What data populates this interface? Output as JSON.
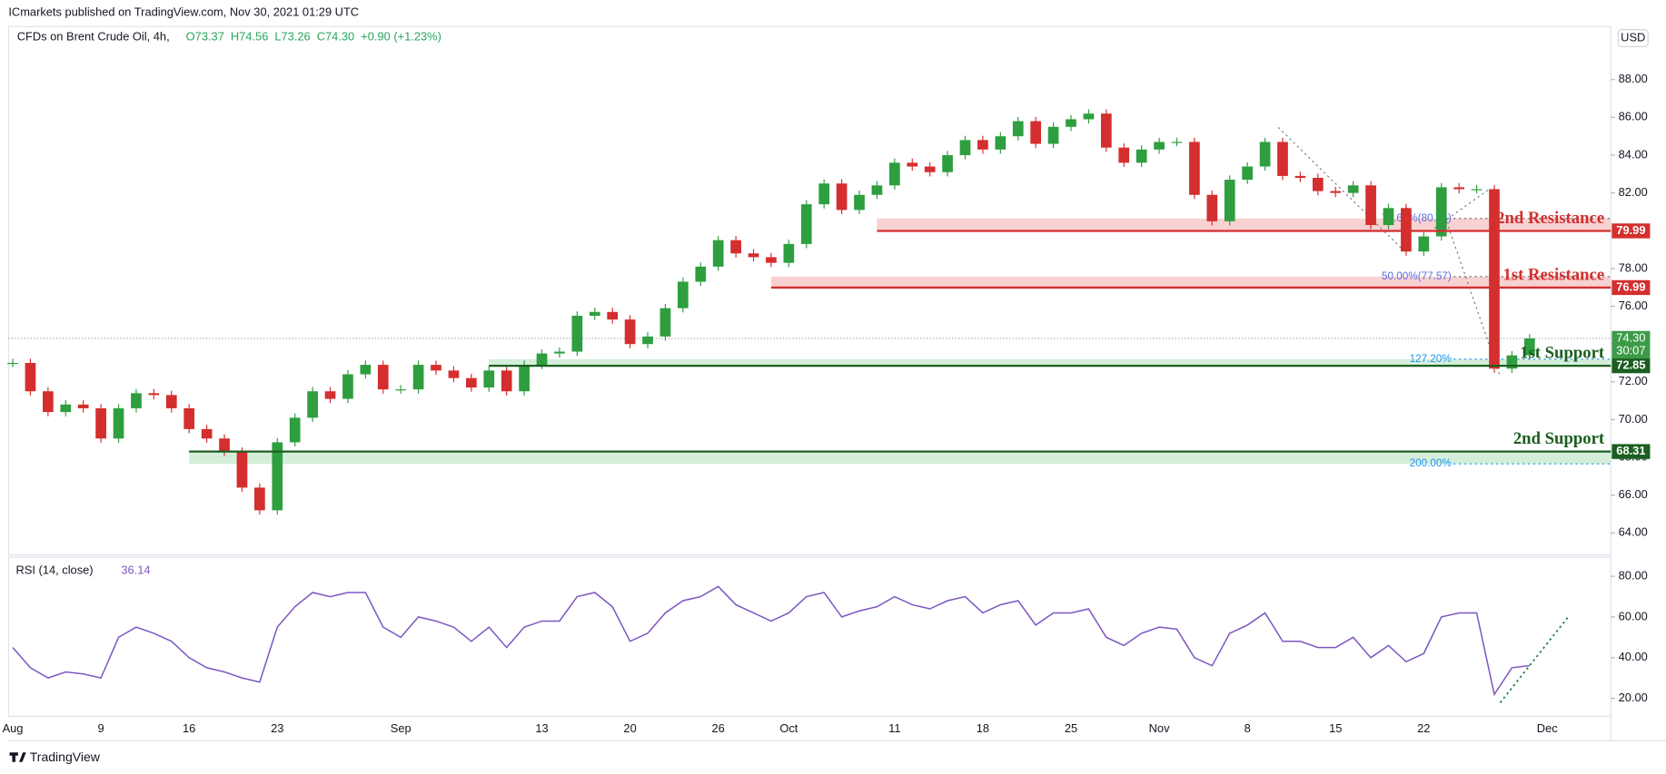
{
  "header": {
    "published": "ICmarkets published on TradingView.com, Nov 30, 2021 01:29 UTC",
    "symbol": "CFDs on Brent Crude Oil, 4h,",
    "ohlc": [
      "O73.37",
      "H74.56",
      "L73.26",
      "C74.30",
      "+0.90 (+1.23%)"
    ],
    "currency": "USD"
  },
  "footer": "TradingView",
  "chart_data": [
    {
      "type": "candlestick",
      "categories": [
        "Aug",
        null,
        null,
        null,
        null,
        "9",
        null,
        null,
        null,
        null,
        "16",
        null,
        null,
        null,
        null,
        "23",
        null,
        null,
        null,
        null,
        null,
        null,
        "Sep",
        null,
        null,
        null,
        null,
        null,
        null,
        null,
        "13",
        null,
        null,
        null,
        null,
        "20",
        null,
        null,
        null,
        null,
        "26",
        null,
        null,
        null,
        "Oct",
        null,
        null,
        null,
        null,
        null,
        "11",
        null,
        null,
        null,
        null,
        "18",
        null,
        null,
        null,
        null,
        "25",
        null,
        null,
        null,
        null,
        "Nov",
        null,
        null,
        null,
        null,
        "8",
        null,
        null,
        null,
        null,
        "15",
        null,
        null,
        null,
        null,
        "22",
        null,
        null,
        null,
        null,
        null,
        null,
        "Dec"
      ],
      "values": [
        73.0,
        71.5,
        70.4,
        70.8,
        70.6,
        69.0,
        70.6,
        71.4,
        71.3,
        70.6,
        69.5,
        69.0,
        68.3,
        66.4,
        65.2,
        68.8,
        70.1,
        71.5,
        71.1,
        72.4,
        72.9,
        71.6,
        71.6,
        72.9,
        72.6,
        72.2,
        71.7,
        72.6,
        71.5,
        72.9,
        73.5,
        73.6,
        75.5,
        75.7,
        75.3,
        74.0,
        74.4,
        75.9,
        77.3,
        78.1,
        79.5,
        78.8,
        78.6,
        78.3,
        79.3,
        81.4,
        82.5,
        81.1,
        81.9,
        82.4,
        83.6,
        83.4,
        83.1,
        84.0,
        84.8,
        84.3,
        85.0,
        85.8,
        84.6,
        85.5,
        85.9,
        86.2,
        84.4,
        83.6,
        84.3,
        84.7,
        84.7,
        81.9,
        80.5,
        82.7,
        83.4,
        84.7,
        82.9,
        82.8,
        82.1,
        82.0,
        82.4,
        80.3,
        81.2,
        78.9,
        79.7,
        82.3,
        82.2,
        82.2,
        72.7,
        73.4,
        74.3,
        null
      ],
      "up_color": "#2e9e3f",
      "down_color": "#d42e2e",
      "ylim": [
        62.83,
        90.81
      ],
      "yticks": [
        {
          "value": 64,
          "label": "64.00"
        },
        {
          "value": 66,
          "label": "66.00"
        },
        {
          "value": 68,
          "label": "68.00"
        },
        {
          "value": 70,
          "label": "70.00"
        },
        {
          "value": 72,
          "label": "72.00"
        },
        {
          "value": 74,
          "label": "74.00"
        },
        {
          "value": 76,
          "label": "76.00"
        },
        {
          "value": 78,
          "label": "78.00"
        },
        {
          "value": 80,
          "label": "80.00"
        },
        {
          "value": 82,
          "label": "82.00"
        },
        {
          "value": 84,
          "label": "84.00"
        },
        {
          "value": 86,
          "label": "86.00"
        },
        {
          "value": 88,
          "label": "88.00"
        }
      ],
      "last_price": {
        "value": 74.3,
        "label": "74.30"
      },
      "countdown": "30:07",
      "levels": [
        {
          "name": "2nd Resistance",
          "value": 79.99,
          "zone": [
            79.99,
            80.65
          ],
          "color": "#d32f2f",
          "zone_color": "#f7c9c9"
        },
        {
          "name": "1st Resistance",
          "value": 76.99,
          "zone": [
            76.99,
            77.57
          ],
          "color": "#d32f2f",
          "zone_color": "#f7c9c9"
        },
        {
          "name": "1st Support",
          "value": 72.85,
          "zone": [
            72.85,
            73.2
          ],
          "color": "#1b5e20",
          "zone_color": "#cdebd3"
        },
        {
          "name": "2nd Support",
          "value": 68.31,
          "zone": [
            67.66,
            68.31
          ],
          "color": "#1b5e20",
          "zone_color": "#cdebd3"
        }
      ],
      "fib": [
        {
          "label": "78.60%(80.65)",
          "value": 80.65
        },
        {
          "label": "50.00%(77.57)",
          "value": 77.57
        },
        {
          "label": "127.20%",
          "value": 73.2
        },
        {
          "label": "200.00%",
          "value": 67.66
        }
      ]
    },
    {
      "type": "line",
      "title": "RSI (14, close)",
      "color": "#7e57c2",
      "values": [
        45,
        35,
        30,
        33,
        32,
        30,
        50,
        55,
        52,
        48,
        40,
        35,
        33,
        30,
        28,
        55,
        65,
        72,
        70,
        72,
        72,
        55,
        50,
        60,
        58,
        55,
        48,
        55,
        45,
        55,
        58,
        58,
        70,
        72,
        65,
        48,
        52,
        62,
        68,
        70,
        75,
        66,
        62,
        58,
        62,
        70,
        72,
        60,
        63,
        65,
        70,
        66,
        64,
        68,
        70,
        62,
        66,
        68,
        56,
        62,
        62,
        64,
        50,
        46,
        52,
        55,
        54,
        40,
        36,
        52,
        56,
        62,
        48,
        48,
        45,
        45,
        50,
        40,
        46,
        38,
        42,
        60,
        62,
        62,
        22,
        35,
        36.14,
        null
      ],
      "ylim": [
        11.13,
        89.39
      ],
      "yticks": [
        {
          "value": 20,
          "label": "20.00"
        },
        {
          "value": 40,
          "label": "40.00"
        },
        {
          "value": 60,
          "label": "60.00"
        },
        {
          "value": 80,
          "label": "80.00"
        }
      ]
    }
  ]
}
